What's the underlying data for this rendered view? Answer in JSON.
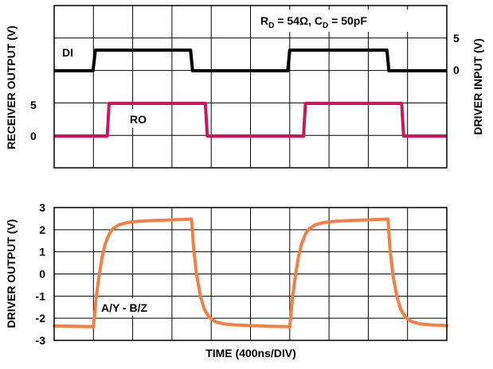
{
  "chart_data": [
    {
      "type": "line",
      "title_parts": {
        "rd_main": "R",
        "rd_sub": "D",
        "rd_value": " = 54Ω, C",
        "cd_sub": "D",
        "cd_value": " = 50pF"
      },
      "ylabel_left": "RECEIVER OUTPUT (V)",
      "ylabel_right": "DRIVER INPUT (V)",
      "grid": true,
      "grid_divisions_x": 10,
      "grid_divisions_y": 5,
      "series": [
        {
          "name": "DI",
          "color": "#000000",
          "axis": "right",
          "ticks": [
            "5",
            "0"
          ],
          "x": [
            0,
            1.98,
            2.1,
            6.95,
            7.05,
            11.9,
            12.0,
            16.95,
            17.05,
            20
          ],
          "y": [
            0,
            0,
            5,
            5,
            0,
            0,
            5,
            5,
            0,
            0
          ]
        },
        {
          "name": "RO",
          "color": "#c8185a",
          "axis": "left",
          "ticks": [
            "5",
            "0"
          ],
          "x": [
            0,
            2.7,
            2.8,
            7.7,
            7.8,
            12.7,
            12.8,
            17.7,
            17.8,
            20
          ],
          "y": [
            0,
            0,
            5,
            5,
            0,
            0,
            5,
            5,
            0,
            0
          ]
        }
      ]
    },
    {
      "type": "line",
      "ylabel": "DRIVER OUTPUT (V)",
      "xlabel": "TIME (400ns/DIV)",
      "ylim": [
        -3,
        3
      ],
      "yticks": [
        "3",
        "2",
        "1",
        "0",
        "-1",
        "-2",
        "-3"
      ],
      "grid": true,
      "grid_divisions_x": 10,
      "series": [
        {
          "name": "A/Y - B/Z",
          "color": "#f47f45",
          "x": [
            0,
            1.5,
            2.0,
            2.15,
            2.3,
            2.45,
            2.6,
            2.8,
            3.0,
            3.3,
            3.7,
            4.3,
            5.2,
            6.2,
            7.0,
            7.1,
            7.25,
            7.45,
            7.65,
            7.9,
            8.2,
            8.6,
            9.2,
            10.0,
            11.0,
            11.5,
            12.0,
            12.15,
            12.3,
            12.45,
            12.6,
            12.8,
            13.0,
            13.3,
            13.7,
            14.3,
            15.2,
            16.2,
            17.0,
            17.1,
            17.25,
            17.45,
            17.65,
            17.9,
            18.2,
            18.6,
            19.2,
            20.0
          ],
          "y": [
            -2.35,
            -2.37,
            -2.38,
            -1.0,
            0.0,
            0.8,
            1.35,
            1.8,
            2.05,
            2.22,
            2.32,
            2.38,
            2.42,
            2.45,
            2.48,
            1.2,
            0.0,
            -1.0,
            -1.6,
            -1.95,
            -2.15,
            -2.25,
            -2.3,
            -2.33,
            -2.36,
            -2.37,
            -2.38,
            -1.0,
            0.0,
            0.8,
            1.35,
            1.8,
            2.05,
            2.22,
            2.32,
            2.38,
            2.42,
            2.45,
            2.48,
            1.2,
            0.0,
            -1.0,
            -1.6,
            -1.95,
            -2.15,
            -2.25,
            -2.3,
            -2.33
          ]
        }
      ]
    }
  ]
}
